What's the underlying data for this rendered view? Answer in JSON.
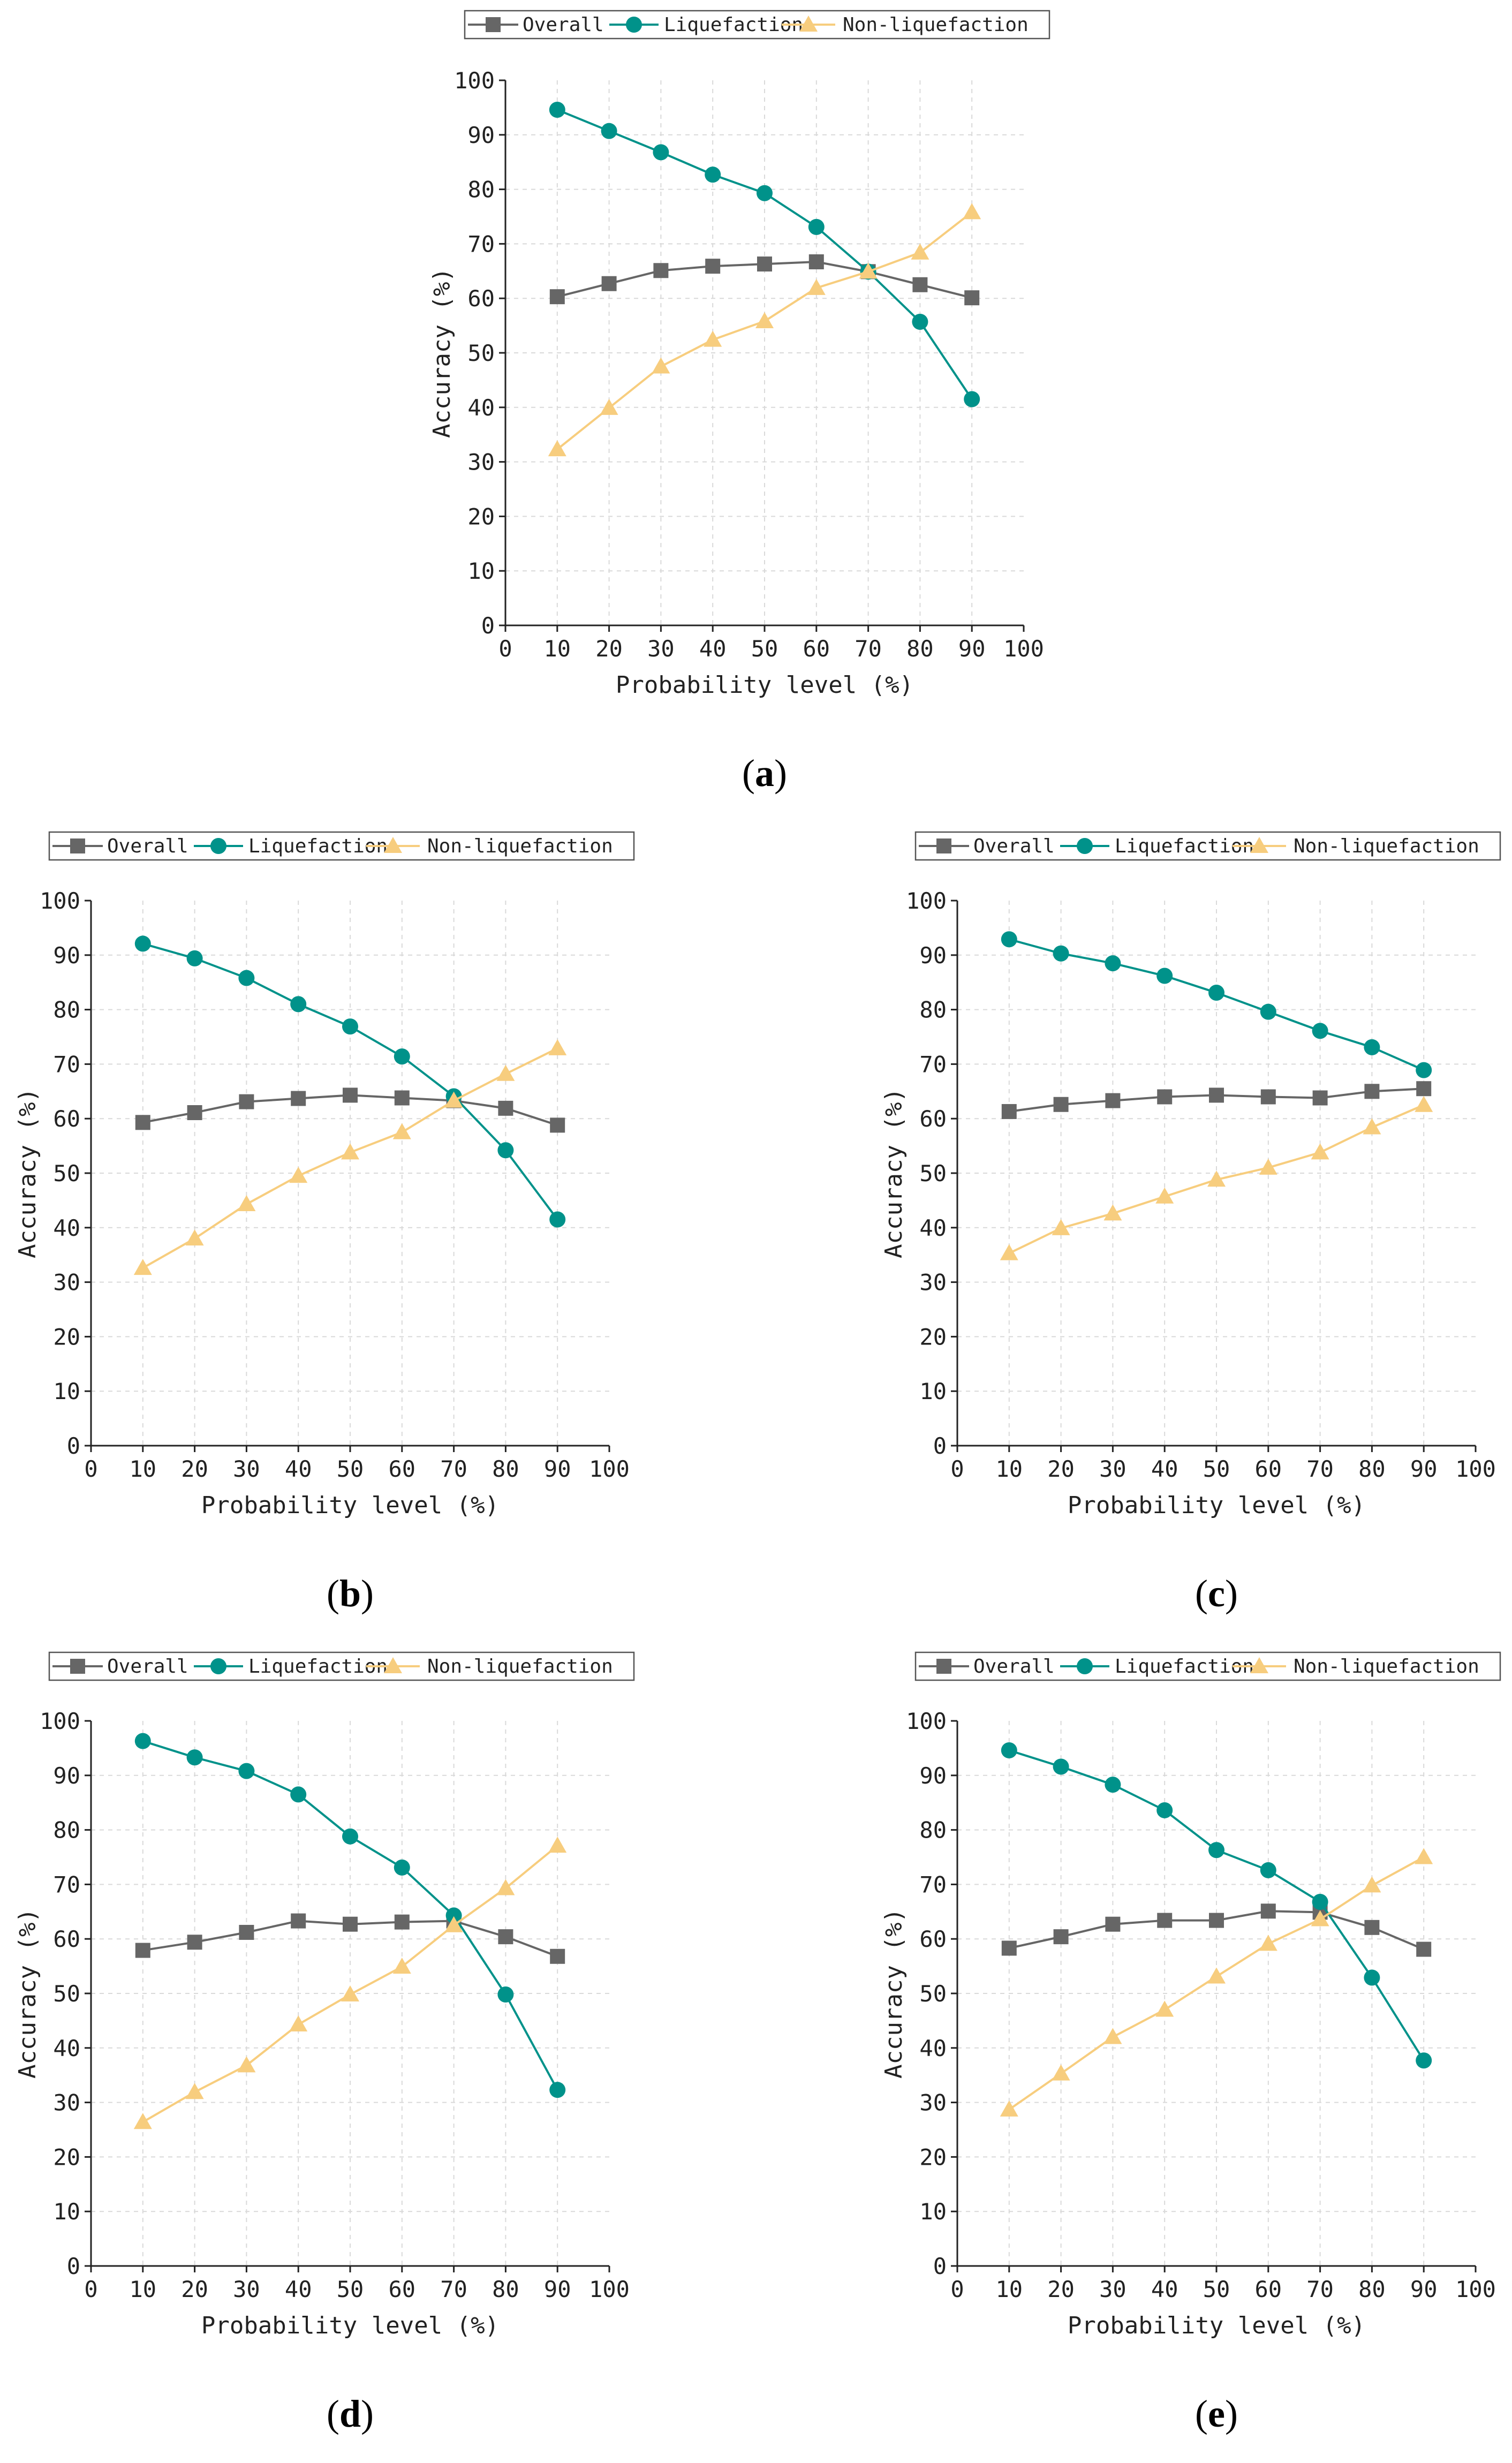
{
  "colors": {
    "overall": "#666666",
    "liquefaction": "#00928a",
    "non_liquefaction": "#f7cd7e",
    "grid": "#d9d9d9",
    "axis": "#222222"
  },
  "legend": {
    "overall": "Overall",
    "liquefaction": "Liquefaction",
    "non_liquefaction": "Non-liquefaction"
  },
  "chart_data": [
    {
      "id": "a",
      "type": "line",
      "panel_label_open": "(",
      "panel_label_letter": "a",
      "panel_label_close": ")",
      "xlabel": "Probability level (%)",
      "ylabel": "Accuracy (%)",
      "xlim": [
        0,
        100
      ],
      "ylim": [
        0,
        100
      ],
      "xticks": [
        "0",
        "10",
        "20",
        "30",
        "40",
        "50",
        "60",
        "70",
        "80",
        "90",
        "100"
      ],
      "yticks": [
        "0",
        "10",
        "20",
        "30",
        "40",
        "50",
        "60",
        "70",
        "80",
        "90",
        "100"
      ],
      "grid": true,
      "legend_position": "top",
      "x": [
        10,
        20,
        30,
        40,
        50,
        60,
        70,
        80,
        90
      ],
      "series": [
        {
          "key": "overall",
          "name": "Overall",
          "marker": "square",
          "values": [
            60.3,
            62.7,
            65.1,
            65.9,
            66.3,
            66.7,
            64.9,
            62.5,
            60.1
          ]
        },
        {
          "key": "liquefaction",
          "name": "Liquefaction",
          "marker": "circle",
          "values": [
            94.6,
            90.7,
            86.8,
            82.7,
            79.3,
            73.1,
            64.9,
            55.7,
            41.5
          ]
        },
        {
          "key": "non_liquefaction",
          "name": "Non-liquefaction",
          "marker": "triangle",
          "values": [
            32.3,
            39.9,
            47.5,
            52.4,
            55.8,
            61.9,
            64.9,
            68.4,
            75.8
          ]
        }
      ]
    },
    {
      "id": "b",
      "type": "line",
      "panel_label_open": "(",
      "panel_label_letter": "b",
      "panel_label_close": ")",
      "xlabel": "Probability level (%)",
      "ylabel": "Accuracy (%)",
      "xlim": [
        0,
        100
      ],
      "ylim": [
        0,
        100
      ],
      "xticks": [
        "0",
        "10",
        "20",
        "30",
        "40",
        "50",
        "60",
        "70",
        "80",
        "90",
        "100"
      ],
      "yticks": [
        "0",
        "10",
        "20",
        "30",
        "40",
        "50",
        "60",
        "70",
        "80",
        "90",
        "100"
      ],
      "grid": true,
      "legend_position": "top",
      "x": [
        10,
        20,
        30,
        40,
        50,
        60,
        70,
        80,
        90
      ],
      "series": [
        {
          "key": "overall",
          "name": "Overall",
          "marker": "square",
          "values": [
            59.3,
            61.1,
            63.1,
            63.7,
            64.3,
            63.8,
            63.3,
            61.9,
            58.8
          ]
        },
        {
          "key": "liquefaction",
          "name": "Liquefaction",
          "marker": "circle",
          "values": [
            92.1,
            89.4,
            85.8,
            81.0,
            76.9,
            71.4,
            64.1,
            54.2,
            41.5
          ]
        },
        {
          "key": "non_liquefaction",
          "name": "Non-liquefaction",
          "marker": "triangle",
          "values": [
            32.6,
            38.0,
            44.3,
            49.5,
            53.8,
            57.5,
            63.3,
            68.2,
            72.9
          ]
        }
      ]
    },
    {
      "id": "c",
      "type": "line",
      "panel_label_open": "(",
      "panel_label_letter": "c",
      "panel_label_close": ")",
      "xlabel": "Probability level (%)",
      "ylabel": "Accuracy (%)",
      "xlim": [
        0,
        100
      ],
      "ylim": [
        0,
        100
      ],
      "xticks": [
        "0",
        "10",
        "20",
        "30",
        "40",
        "50",
        "60",
        "70",
        "80",
        "90",
        "100"
      ],
      "yticks": [
        "0",
        "10",
        "20",
        "30",
        "40",
        "50",
        "60",
        "70",
        "80",
        "90",
        "100"
      ],
      "grid": true,
      "legend_position": "top",
      "x": [
        10,
        20,
        30,
        40,
        50,
        60,
        70,
        80,
        90
      ],
      "series": [
        {
          "key": "overall",
          "name": "Overall",
          "marker": "square",
          "values": [
            61.3,
            62.6,
            63.3,
            64.0,
            64.3,
            64.0,
            63.8,
            65.0,
            65.5
          ]
        },
        {
          "key": "liquefaction",
          "name": "Liquefaction",
          "marker": "circle",
          "values": [
            92.9,
            90.3,
            88.5,
            86.2,
            83.1,
            79.6,
            76.1,
            73.1,
            68.9
          ]
        },
        {
          "key": "non_liquefaction",
          "name": "Non-liquefaction",
          "marker": "triangle",
          "values": [
            35.3,
            39.9,
            42.6,
            45.7,
            48.8,
            51.0,
            53.8,
            58.4,
            62.5
          ]
        }
      ]
    },
    {
      "id": "d",
      "type": "line",
      "panel_label_open": "(",
      "panel_label_letter": "d",
      "panel_label_close": ")",
      "xlabel": "Probability level (%)",
      "ylabel": "Accuracy (%)",
      "xlim": [
        0,
        100
      ],
      "ylim": [
        0,
        100
      ],
      "xticks": [
        "0",
        "10",
        "20",
        "30",
        "40",
        "50",
        "60",
        "70",
        "80",
        "90",
        "100"
      ],
      "yticks": [
        "0",
        "10",
        "20",
        "30",
        "40",
        "50",
        "60",
        "70",
        "80",
        "90",
        "100"
      ],
      "grid": true,
      "legend_position": "top",
      "x": [
        10,
        20,
        30,
        40,
        50,
        60,
        70,
        80,
        90
      ],
      "series": [
        {
          "key": "overall",
          "name": "Overall",
          "marker": "square",
          "values": [
            57.9,
            59.4,
            61.2,
            63.3,
            62.7,
            63.1,
            63.3,
            60.4,
            56.8
          ]
        },
        {
          "key": "liquefaction",
          "name": "Liquefaction",
          "marker": "circle",
          "values": [
            96.3,
            93.3,
            90.8,
            86.5,
            78.8,
            73.1,
            64.3,
            49.8,
            32.3
          ]
        },
        {
          "key": "non_liquefaction",
          "name": "Non-liquefaction",
          "marker": "triangle",
          "values": [
            26.4,
            31.9,
            36.8,
            44.3,
            49.8,
            54.9,
            62.5,
            69.3,
            77.1
          ]
        }
      ]
    },
    {
      "id": "e",
      "type": "line",
      "panel_label_open": "(",
      "panel_label_letter": "e",
      "panel_label_close": ")",
      "xlabel": "Probability level (%)",
      "ylabel": "Accuracy (%)",
      "xlim": [
        0,
        100
      ],
      "ylim": [
        0,
        100
      ],
      "xticks": [
        "0",
        "10",
        "20",
        "30",
        "40",
        "50",
        "60",
        "70",
        "80",
        "90",
        "100"
      ],
      "yticks": [
        "0",
        "10",
        "20",
        "30",
        "40",
        "50",
        "60",
        "70",
        "80",
        "90",
        "100"
      ],
      "grid": true,
      "legend_position": "top",
      "x": [
        10,
        20,
        30,
        40,
        50,
        60,
        70,
        80,
        90
      ],
      "series": [
        {
          "key": "overall",
          "name": "Overall",
          "marker": "square",
          "values": [
            58.3,
            60.4,
            62.7,
            63.4,
            63.4,
            65.1,
            64.9,
            62.1,
            58.1
          ]
        },
        {
          "key": "liquefaction",
          "name": "Liquefaction",
          "marker": "circle",
          "values": [
            94.6,
            91.6,
            88.3,
            83.6,
            76.3,
            72.6,
            66.8,
            52.9,
            37.7
          ]
        },
        {
          "key": "non_liquefaction",
          "name": "Non-liquefaction",
          "marker": "triangle",
          "values": [
            28.7,
            35.3,
            42.0,
            47.0,
            53.1,
            59.1,
            63.6,
            69.8,
            75.0
          ]
        }
      ]
    }
  ]
}
